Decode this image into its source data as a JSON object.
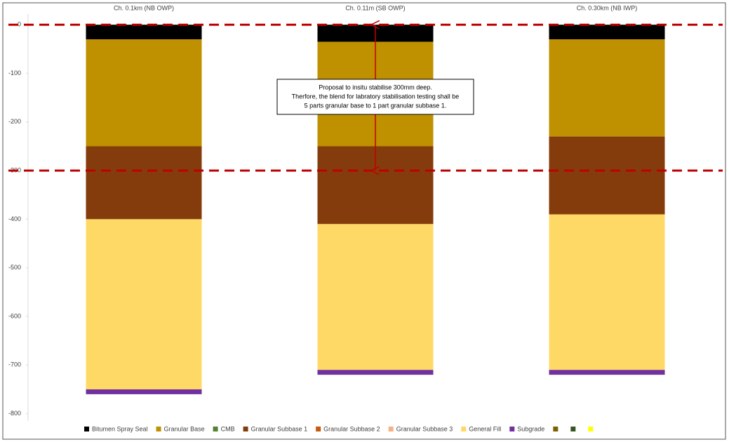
{
  "chart_data": {
    "type": "stacked-bar",
    "categories": [
      "Ch. 0.1km (NB OWP)",
      "Ch. 0.11m (SB OWP)",
      "Ch. 0.30km (NB IWP)"
    ],
    "series": [
      {
        "name": "Bitumen Spray Seal",
        "color": "#000000",
        "values": [
          -30,
          -35,
          -30
        ]
      },
      {
        "name": "Granular Base",
        "color": "#bf9000",
        "values": [
          -220,
          -215,
          -200
        ]
      },
      {
        "name": "CMB",
        "color": "#548235",
        "values": [
          0,
          0,
          0
        ]
      },
      {
        "name": "Granular Subbase 1",
        "color": "#843c0c",
        "values": [
          -150,
          -160,
          -160
        ]
      },
      {
        "name": "Granular Subbase 2",
        "color": "#c55a11",
        "values": [
          0,
          0,
          0
        ]
      },
      {
        "name": "Granular Subbase 3",
        "color": "#f4b183",
        "values": [
          0,
          0,
          0
        ]
      },
      {
        "name": "General Fill",
        "color": "#ffd966",
        "values": [
          -350,
          -300,
          -320
        ]
      },
      {
        "name": "Subgrade",
        "color": "#7030a0",
        "values": [
          -10,
          -10,
          -10
        ]
      },
      {
        "name": null,
        "color": "#7f6000",
        "values": [
          null,
          null,
          null
        ]
      },
      {
        "name": null,
        "color": "#375623",
        "values": [
          null,
          null,
          null
        ]
      },
      {
        "name": null,
        "color": "#ffff00",
        "values": [
          null,
          null,
          null
        ]
      }
    ],
    "ylim": [
      -815,
      22
    ],
    "yticks": [
      0,
      -100,
      -200,
      -300,
      -400,
      -500,
      -600,
      -700,
      -800
    ],
    "grid": false,
    "reference_lines": {
      "color": "#c00000",
      "values": [
        0,
        -300
      ]
    },
    "annotation": {
      "lines": [
        "Proposal to insitu stabilise 300mm deep.",
        "Therfore, the blend for labratory stabilisation testing shall be",
        "5 parts granular base to 1 part granular subbase 1."
      ],
      "arrow_category": 1,
      "arrow_from": -300,
      "arrow_to": 0
    }
  }
}
